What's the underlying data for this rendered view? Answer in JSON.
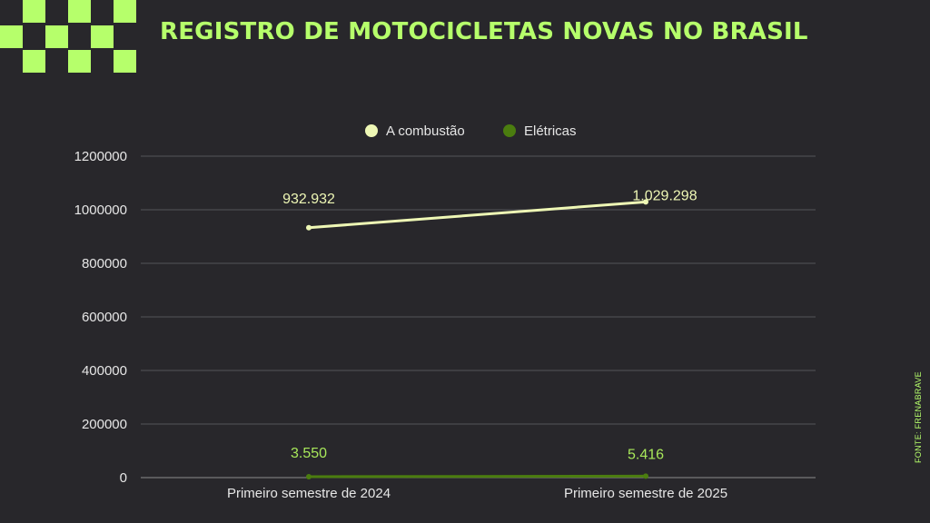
{
  "title": "REGISTRO DE MOTOCICLETAS NOVAS NO BRASIL",
  "source": "FONTE: FRENABRAVE",
  "colors": {
    "background": "#28272b",
    "accent": "#b6ff6b",
    "combustion": "#eef7b5",
    "electric": "#4b7d0f",
    "electric_label": "#a8e85a"
  },
  "chart_data": {
    "type": "line",
    "categories": [
      "Primeiro semestre de 2024",
      "Primeiro semestre de 2025"
    ],
    "series": [
      {
        "name": "A combustão",
        "values": [
          932932,
          1029298
        ],
        "labels": [
          "932.932",
          "1.029.298"
        ]
      },
      {
        "name": "Elétricas",
        "values": [
          3550,
          5416
        ],
        "labels": [
          "3.550",
          "5.416"
        ]
      }
    ],
    "ylim": [
      0,
      1200000
    ],
    "yticks": [
      "0",
      "200000",
      "400000",
      "600000",
      "800000",
      "1000000",
      "1200000"
    ],
    "legend": "top-center",
    "grid": true
  }
}
